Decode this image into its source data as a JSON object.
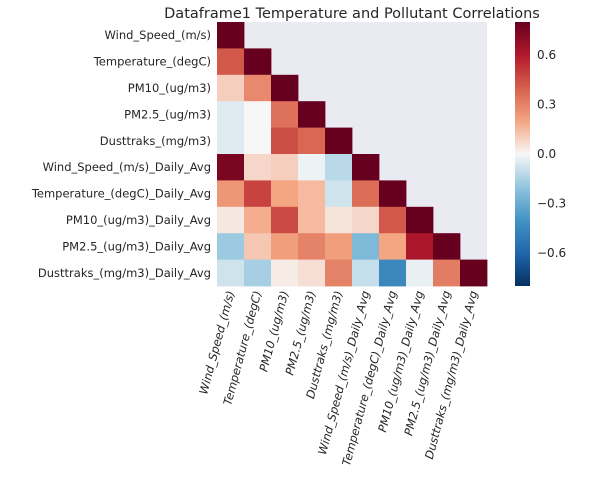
{
  "chart_data": {
    "type": "heatmap",
    "title": "Dataframe1 Temperature and Pollutant Correlations",
    "variables": [
      "Wind_Speed_(m/s)",
      "Temperature_(degC)",
      "PM10_(ug/m3)",
      "PM2.5_(ug/m3)",
      "Dusttraks_(mg/m3)",
      "Wind_Speed_(m/s)_Daily_Avg",
      "Temperature_(degC)_Daily_Avg",
      "PM10_(ug/m3)_Daily_Avg",
      "PM2.5_(ug/m3)_Daily_Avg",
      "Dusttraks_(mg/m3)_Daily_Avg"
    ],
    "mask": "upper-triangle",
    "values": [
      [
        1.0
      ],
      [
        0.42,
        1.0
      ],
      [
        0.1,
        0.28,
        1.0
      ],
      [
        -0.05,
        0.0,
        0.35,
        1.0
      ],
      [
        -0.05,
        0.0,
        0.45,
        0.38,
        1.0
      ],
      [
        0.75,
        0.08,
        0.1,
        -0.02,
        -0.12,
        1.0
      ],
      [
        0.24,
        0.48,
        0.2,
        0.15,
        -0.08,
        0.36,
        1.0
      ],
      [
        0.04,
        0.18,
        0.46,
        0.15,
        0.05,
        0.08,
        0.42,
        1.0
      ],
      [
        -0.18,
        0.12,
        0.22,
        0.3,
        0.22,
        -0.25,
        0.2,
        0.62,
        1.0
      ],
      [
        -0.08,
        -0.16,
        0.03,
        0.06,
        0.3,
        -0.1,
        -0.45,
        -0.03,
        0.32,
        1.0
      ]
    ],
    "colormap": "RdBu_r",
    "vmin": -0.8,
    "vmax": 0.8,
    "colorbar_ticks": [
      "0.6",
      "0.3",
      "0.0",
      "−0.3",
      "−0.6"
    ],
    "colorbar_tick_values": [
      0.6,
      0.3,
      0.0,
      -0.3,
      -0.6
    ],
    "background_color": "#eaeaf2"
  }
}
